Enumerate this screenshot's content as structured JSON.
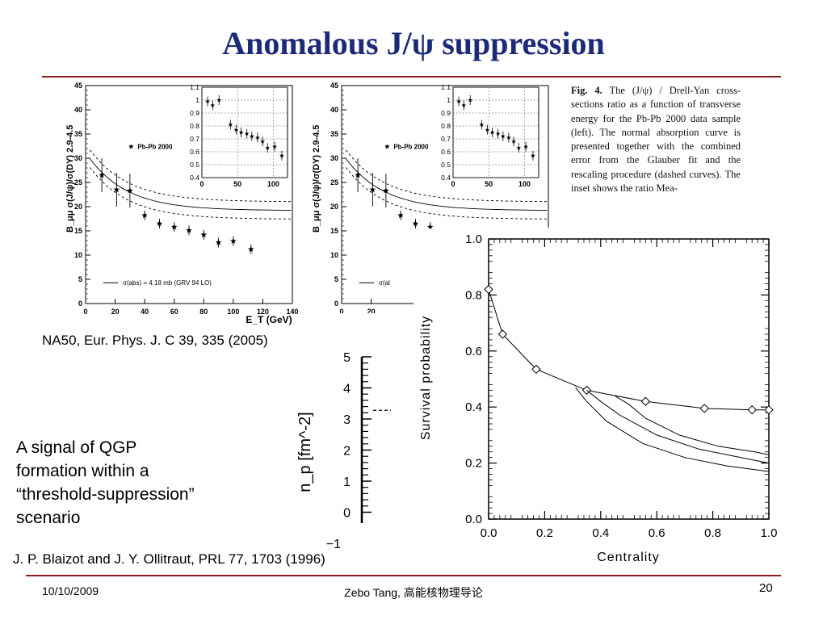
{
  "slide": {
    "title": "Anomalous J/ψ suppression",
    "ref_na50": "NA50, Eur. Phys. J. C 39, 335 (2005)",
    "signal_text": [
      "A signal of QGP",
      "formation within  a",
      "“threshold-suppression”",
      "scenario"
    ],
    "ref_blaizot": "J. P. Blaizot and J. Y. Ollitraut, PRL 77, 1703 (1996)",
    "footer_date": "10/10/2009",
    "footer_center": "Zebo Tang, 高能核物理导论",
    "page_number": "20",
    "fig_caption_label": "Fig. 4.",
    "fig_caption_text": "The (J/ψ) / Drell-Yan cross-sections ratio as a function of transverse energy for the Pb-Pb 2000 data sample (left). The normal absorption curve is presented together with the combined error from the Glauber fit and the rescaling procedure (dashed curves). The inset shows the ratio Mea-"
  },
  "colors": {
    "title": "#1c2a78",
    "rule": "#8b1a1a"
  },
  "chart_data": [
    {
      "type": "scatter",
      "xlabel": "E_T (GeV)",
      "ylabel": "B_μμ σ(J/ψ)/σ(DY) 2.9-4.5",
      "xlim": [
        0,
        140
      ],
      "ylim": [
        0,
        45
      ],
      "x_ticks": [
        "0",
        "20",
        "40",
        "60",
        "80",
        "100",
        "120",
        "140"
      ],
      "y_ticks": [
        "0",
        "5",
        "10",
        "15",
        "20",
        "25",
        "30",
        "35",
        "40",
        "45"
      ],
      "legend": "Pb-Pb 2000",
      "curve_label": "σ(abs) = 4.18 mb (GRV 94 LO)",
      "series": [
        {
          "name": "Pb-Pb 2000",
          "x": [
            11,
            21,
            30,
            40,
            50,
            60,
            70,
            80,
            90,
            100,
            112
          ],
          "y": [
            26.5,
            23.5,
            23.3,
            18.2,
            16.5,
            15.8,
            15.1,
            14.2,
            12.6,
            12.9,
            11.2
          ]
        }
      ],
      "inset": {
        "xlim": [
          0,
          120
        ],
        "ylim": [
          0.4,
          1.1
        ],
        "x_ticks": [
          "0",
          "50",
          "100"
        ],
        "y_ticks": [
          "0.4",
          "0.5",
          "0.6",
          "0.7",
          "0.8",
          "0.9",
          "1",
          "1.1"
        ],
        "x": [
          8,
          15,
          24,
          40,
          48,
          55,
          63,
          70,
          78,
          85,
          92,
          102,
          112
        ],
        "y": [
          0.99,
          0.96,
          1.0,
          0.81,
          0.77,
          0.75,
          0.74,
          0.72,
          0.71,
          0.68,
          0.63,
          0.64,
          0.57
        ]
      }
    },
    {
      "type": "scatter",
      "legend": "Pb-Pb 2000",
      "curve_label": "σ(al",
      "xlim": [
        0,
        140
      ],
      "ylim": [
        0,
        45
      ],
      "x_ticks": [
        "0",
        "20"
      ],
      "y_ticks": [
        "0",
        "5",
        "10",
        "15",
        "20",
        "25",
        "30",
        "35",
        "40",
        "45"
      ],
      "series": [
        {
          "name": "Pb-Pb 2000",
          "x": [
            11,
            21,
            30,
            40,
            50,
            60
          ],
          "y": [
            26.5,
            23.5,
            23.3,
            18.2,
            16.5,
            15.8
          ]
        }
      ],
      "inset": {
        "xlim": [
          0,
          120
        ],
        "ylim": [
          0.4,
          1.1
        ],
        "x_ticks": [
          "0",
          "50",
          "100"
        ],
        "y_ticks": [
          "0.4",
          "0.5",
          "0.6",
          "0.7",
          "0.8",
          "0.9",
          "1",
          "1.1"
        ],
        "x": [
          8,
          15,
          24,
          40,
          48,
          55,
          63,
          70,
          78,
          85,
          92,
          102,
          112
        ],
        "y": [
          0.99,
          0.96,
          1.0,
          0.81,
          0.77,
          0.75,
          0.74,
          0.72,
          0.71,
          0.68,
          0.63,
          0.64,
          0.57
        ]
      }
    },
    {
      "type": "line",
      "xlabel": "Centrality",
      "ylabel": "Survival probability",
      "xlim": [
        0,
        1.0
      ],
      "ylim": [
        0,
        1.0
      ],
      "x_ticks": [
        "0.0",
        "0.2",
        "0.4",
        "0.6",
        "0.8",
        "1.0"
      ],
      "y_ticks": [
        "0.0",
        "0.2",
        "0.4",
        "0.6",
        "0.8",
        "1.0"
      ],
      "main_points": {
        "x": [
          0.0,
          0.05,
          0.17,
          0.35,
          0.56,
          0.77,
          0.94,
          1.0
        ],
        "y": [
          0.82,
          0.66,
          0.535,
          0.46,
          0.42,
          0.395,
          0.39,
          0.39
        ]
      },
      "threshold_curves": [
        {
          "x": [
            0.31,
            0.35,
            0.42,
            0.55,
            0.7,
            0.85,
            1.0
          ],
          "y": [
            0.47,
            0.42,
            0.35,
            0.27,
            0.22,
            0.19,
            0.17
          ]
        },
        {
          "x": [
            0.35,
            0.4,
            0.47,
            0.6,
            0.75,
            0.9,
            1.0
          ],
          "y": [
            0.46,
            0.42,
            0.37,
            0.3,
            0.25,
            0.22,
            0.2
          ]
        },
        {
          "x": [
            0.45,
            0.5,
            0.56,
            0.68,
            0.82,
            0.95,
            1.0
          ],
          "y": [
            0.44,
            0.41,
            0.36,
            0.3,
            0.26,
            0.24,
            0.23
          ]
        }
      ]
    },
    {
      "type": "scale",
      "ylabel": "n_p [fm^-2]",
      "ticks": [
        "5",
        "4",
        "3",
        "2",
        "1",
        "0",
        "−1"
      ]
    }
  ]
}
